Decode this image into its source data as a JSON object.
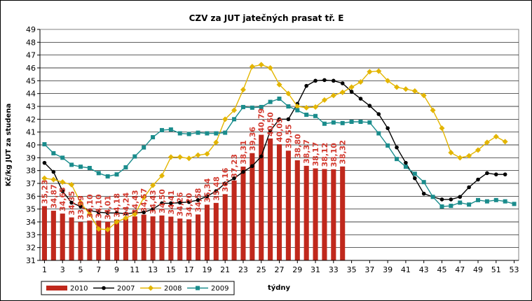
{
  "chart_data": {
    "type": "bar",
    "title": "CZV za JUT jatečných prasat tř. E",
    "xlabel": "týdny",
    "ylabel": "Kč/kg JUT za studena",
    "ylim": [
      31,
      49
    ],
    "yticks": [
      31,
      32,
      33,
      34,
      35,
      36,
      37,
      38,
      39,
      40,
      41,
      42,
      43,
      44,
      45,
      46,
      47,
      48,
      49
    ],
    "xlim": [
      1,
      53
    ],
    "xticks": [
      1,
      3,
      5,
      7,
      9,
      11,
      13,
      15,
      17,
      19,
      21,
      23,
      25,
      27,
      29,
      31,
      33,
      35,
      37,
      39,
      41,
      43,
      45,
      47,
      49,
      51,
      53
    ],
    "grid": "y-major",
    "legend_position": "bottom-left",
    "series": [
      {
        "name": "2010",
        "kind": "bar",
        "color": "#c0281c",
        "label_color": "#d33b30",
        "x": [
          1,
          2,
          3,
          4,
          5,
          6,
          7,
          8,
          9,
          10,
          11,
          12,
          13,
          14,
          15,
          16,
          17,
          18,
          19,
          20,
          21,
          22,
          23,
          24,
          25,
          26,
          27,
          28,
          29,
          30,
          31,
          32,
          33,
          34
        ],
        "values": [
          35.23,
          34.87,
          34.65,
          34.35,
          33.99,
          34.1,
          34.1,
          34.01,
          34.18,
          34.24,
          34.43,
          34.57,
          34.43,
          34.5,
          34.41,
          34.26,
          34.2,
          34.58,
          35.34,
          35.48,
          36.16,
          37.23,
          38.31,
          39.36,
          40.79,
          40.5,
          40.05,
          39.55,
          38.8,
          38.37,
          38.17,
          38.12,
          38.1,
          38.32
        ],
        "labels": [
          "35,23",
          "34,87",
          "34,65",
          "34,35",
          "33,99",
          "34,10",
          "34,10",
          "34,01",
          "34,18",
          "34,24",
          "34,43",
          "34,57",
          "34,43",
          "34,50",
          "34,41",
          "34,26",
          "34,20",
          "34,58",
          "35,34",
          "35,48",
          "36,16",
          "37,23",
          "38,31",
          "39,36",
          "40,79",
          "40,50",
          "40,05",
          "39,55",
          "38,80",
          "38,37",
          "38,17",
          "38,12",
          "38,10",
          "38,32"
        ]
      },
      {
        "name": "2007",
        "kind": "line",
        "marker": "circle",
        "color": "#000000",
        "x": [
          1,
          2,
          3,
          4,
          5,
          6,
          7,
          8,
          9,
          10,
          11,
          12,
          13,
          14,
          15,
          16,
          17,
          18,
          19,
          20,
          21,
          22,
          23,
          24,
          25,
          26,
          27,
          28,
          29,
          30,
          31,
          32,
          33,
          34,
          35,
          36,
          37,
          38,
          39,
          40,
          41,
          42,
          43,
          44,
          45,
          46,
          47,
          48,
          49,
          50,
          51,
          52
        ],
        "values": [
          38.6,
          37.9,
          36.4,
          35.5,
          35.2,
          34.9,
          34.75,
          34.7,
          34.7,
          34.65,
          34.7,
          34.75,
          35.0,
          35.45,
          35.45,
          35.5,
          35.55,
          35.7,
          36.0,
          36.4,
          37.0,
          37.4,
          37.9,
          38.35,
          39.1,
          41.1,
          42.0,
          42.0,
          43.2,
          44.6,
          45.0,
          45.05,
          45.0,
          44.8,
          44.15,
          43.6,
          43.05,
          42.4,
          41.3,
          39.8,
          38.6,
          37.4,
          36.2,
          35.95,
          35.75,
          35.75,
          35.95,
          36.7,
          37.3,
          37.8,
          37.7,
          37.7
        ]
      },
      {
        "name": "2008",
        "kind": "line",
        "marker": "diamond",
        "color": "#e3b500",
        "x": [
          1,
          2,
          3,
          4,
          5,
          6,
          7,
          8,
          9,
          10,
          11,
          12,
          13,
          14,
          15,
          16,
          17,
          18,
          19,
          20,
          21,
          22,
          23,
          24,
          25,
          26,
          27,
          28,
          29,
          30,
          31,
          32,
          33,
          34,
          35,
          36,
          37,
          38,
          39,
          40,
          41,
          42,
          43,
          44,
          45,
          46,
          47,
          48,
          49,
          50,
          51,
          52
        ],
        "values": [
          37.4,
          37.3,
          37.1,
          36.9,
          35.5,
          34.6,
          33.45,
          33.4,
          34.0,
          34.3,
          34.6,
          35.9,
          36.85,
          37.6,
          39.05,
          39.05,
          38.95,
          39.2,
          39.3,
          40.2,
          42.0,
          42.7,
          44.3,
          46.1,
          46.25,
          46.0,
          44.7,
          44.0,
          43.0,
          42.9,
          42.95,
          43.5,
          43.85,
          44.1,
          44.5,
          44.9,
          45.7,
          45.75,
          45.0,
          44.5,
          44.35,
          44.2,
          43.85,
          42.7,
          41.3,
          39.4,
          39.0,
          39.15,
          39.6,
          40.2,
          40.65,
          40.25
        ]
      },
      {
        "name": "2009",
        "kind": "line",
        "marker": "square",
        "color": "#1a8c8c",
        "x": [
          1,
          2,
          3,
          4,
          5,
          6,
          7,
          8,
          9,
          10,
          11,
          12,
          13,
          14,
          15,
          16,
          17,
          18,
          19,
          20,
          21,
          22,
          23,
          24,
          25,
          26,
          27,
          28,
          29,
          30,
          31,
          32,
          33,
          34,
          35,
          36,
          37,
          38,
          39,
          40,
          41,
          42,
          43,
          44,
          45,
          46,
          47,
          48,
          49,
          50,
          51,
          52,
          53
        ],
        "values": [
          40.05,
          39.35,
          39.0,
          38.45,
          38.3,
          38.2,
          37.8,
          37.55,
          37.7,
          38.25,
          39.1,
          39.8,
          40.6,
          41.15,
          41.2,
          40.9,
          40.85,
          40.95,
          40.9,
          40.9,
          40.95,
          42.0,
          42.95,
          42.9,
          42.95,
          43.35,
          43.6,
          43.0,
          42.7,
          42.35,
          42.25,
          41.65,
          41.75,
          41.7,
          41.8,
          41.8,
          41.75,
          40.9,
          39.95,
          38.9,
          38.3,
          37.75,
          37.1,
          35.95,
          35.2,
          35.25,
          35.5,
          35.35,
          35.7,
          35.6,
          35.7,
          35.6,
          35.4
        ]
      }
    ]
  }
}
